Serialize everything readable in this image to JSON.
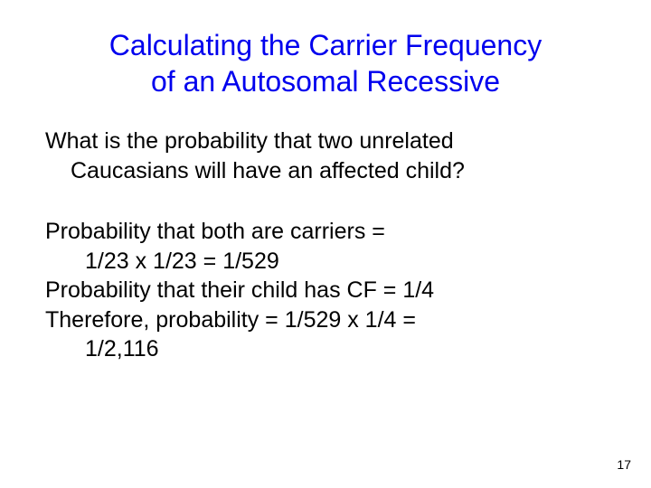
{
  "title_line1": "Calculating the Carrier Frequency",
  "title_line2": "of an Autosomal Recessive",
  "title_color": "#0000ee",
  "question_line1": "What is the probability that two unrelated",
  "question_line2": "Caucasians will have an affected child?",
  "body_line1": "Probability that both are carriers =",
  "body_line2": "1/23 x 1/23 = 1/529",
  "body_line3": "Probability that their child has CF = 1/4",
  "body_line4": "Therefore, probability = 1/529 x 1/4 =",
  "body_line5": "1/2,116",
  "page_number": "17",
  "text_color": "#000000",
  "background_color": "#ffffff"
}
